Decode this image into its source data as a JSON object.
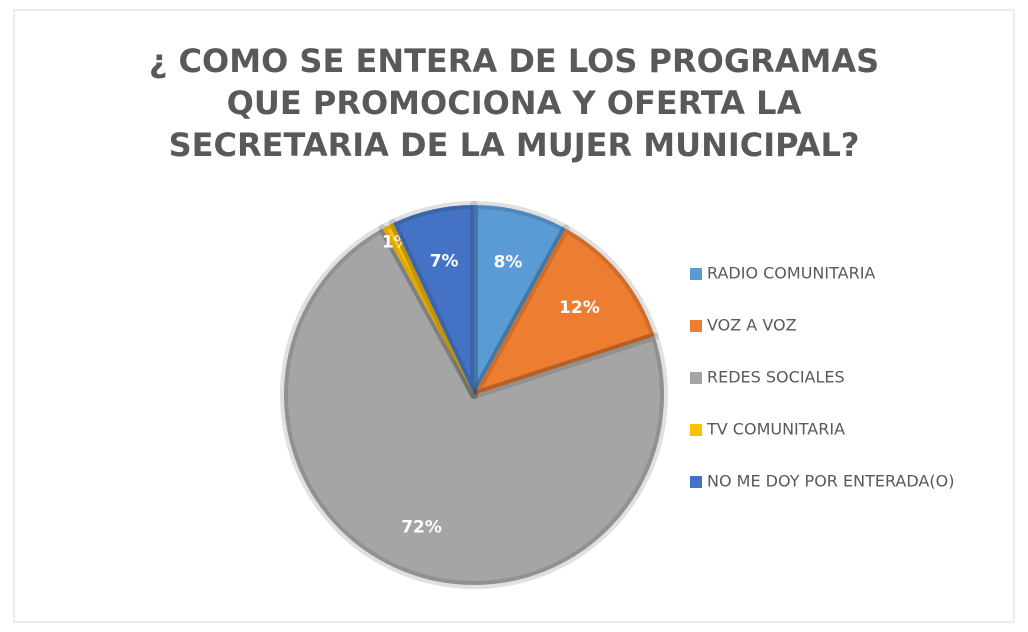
{
  "chart_data": {
    "type": "pie",
    "title": "¿ COMO SE ENTERA DE LOS PROGRAMAS QUE PROMOCIONA Y OFERTA LA SECRETARIA DE LA MUJER MUNICIPAL?",
    "categories": [
      "RADIO COMUNITARIA",
      "VOZ A VOZ",
      "REDES SOCIALES",
      "TV COMUNITARIA",
      "NO ME DOY POR ENTERADA(O)"
    ],
    "values": [
      8,
      12,
      72,
      1,
      7
    ],
    "value_labels": [
      "8%",
      "12%",
      "72%",
      "1%",
      "7%"
    ],
    "colors": [
      "#5b9bd5",
      "#ed7d31",
      "#a5a5a5",
      "#ffc000",
      "#4472c4"
    ],
    "legend": "right"
  }
}
